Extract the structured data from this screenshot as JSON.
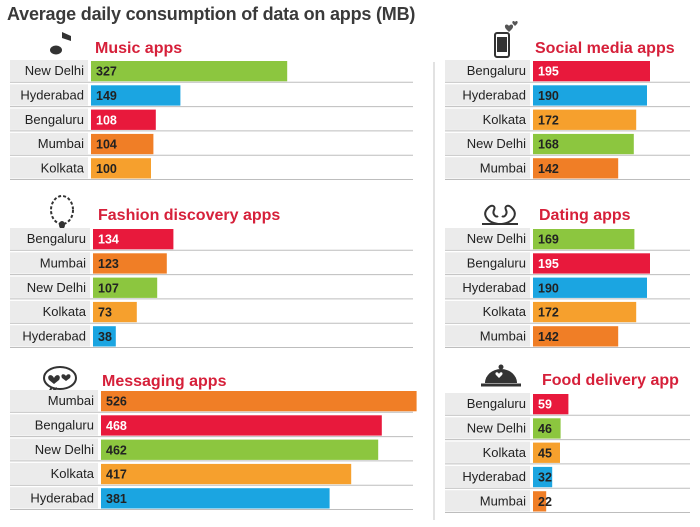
{
  "title": "Average daily consumption of data on apps (MB)",
  "colors": {
    "green": "#8cc63f",
    "blue": "#1ba5e1",
    "red": "#e8193c",
    "orange": "#f07e26",
    "amber": "#f6a02d",
    "title_red": "#d6203a",
    "label_bg": "#ebebeb"
  },
  "chart_data": [
    {
      "type": "bar",
      "title": "Music apps",
      "icon": "music-note-icon",
      "categories": [
        "New Delhi",
        "Hyderabad",
        "Bengaluru",
        "Mumbai",
        "Kolkata"
      ],
      "values": [
        327,
        149,
        108,
        104,
        100
      ],
      "bar_colors": [
        "green",
        "blue",
        "red",
        "orange",
        "amber"
      ]
    },
    {
      "type": "bar",
      "title": "Social media apps",
      "icon": "smartphone-hearts-icon",
      "categories": [
        "Bengaluru",
        "Hyderabad",
        "Kolkata",
        "New Delhi",
        "Mumbai"
      ],
      "values": [
        195,
        190,
        172,
        168,
        142
      ],
      "bar_colors": [
        "red",
        "blue",
        "amber",
        "green",
        "orange"
      ]
    },
    {
      "type": "bar",
      "title": "Fashion discovery apps",
      "icon": "necklace-icon",
      "categories": [
        "Bengaluru",
        "Mumbai",
        "New Delhi",
        "Kolkata",
        "Hyderabad"
      ],
      "values": [
        134,
        123,
        107,
        73,
        38
      ],
      "bar_colors": [
        "red",
        "orange",
        "green",
        "amber",
        "blue"
      ]
    },
    {
      "type": "bar",
      "title": "Dating apps",
      "icon": "swans-heart-icon",
      "categories": [
        "New Delhi",
        "Bengaluru",
        "Hyderabad",
        "Kolkata",
        "Mumbai"
      ],
      "values": [
        169,
        195,
        190,
        172,
        142
      ],
      "bar_colors": [
        "green",
        "red",
        "blue",
        "amber",
        "orange"
      ]
    },
    {
      "type": "bar",
      "title": "Messaging apps",
      "icon": "chat-hearts-icon",
      "categories": [
        "Mumbai",
        "Bengaluru",
        "New Delhi",
        "Kolkata",
        "Hyderabad"
      ],
      "values": [
        526,
        468,
        462,
        417,
        381
      ],
      "bar_colors": [
        "orange",
        "red",
        "green",
        "amber",
        "blue"
      ]
    },
    {
      "type": "bar",
      "title": "Food delivery app",
      "icon": "food-cloche-icon",
      "categories": [
        "Bengaluru",
        "New Delhi",
        "Kolkata",
        "Hyderabad",
        "Mumbai"
      ],
      "values": [
        59,
        46,
        45,
        32,
        22
      ],
      "bar_colors": [
        "red",
        "green",
        "amber",
        "blue",
        "orange"
      ]
    }
  ]
}
